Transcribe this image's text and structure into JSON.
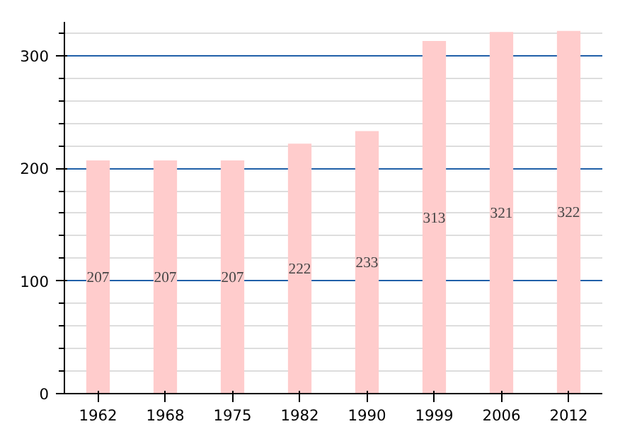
{
  "chart_data": {
    "type": "bar",
    "categories": [
      "1962",
      "1968",
      "1975",
      "1982",
      "1990",
      "1999",
      "2006",
      "2012"
    ],
    "values": [
      207,
      207,
      207,
      222,
      233,
      313,
      321,
      322
    ],
    "color": "#ffcccc",
    "data_labels": true,
    "ylim": [
      0,
      330
    ],
    "yticks": [
      0,
      100,
      200,
      300
    ],
    "grid": "y"
  }
}
